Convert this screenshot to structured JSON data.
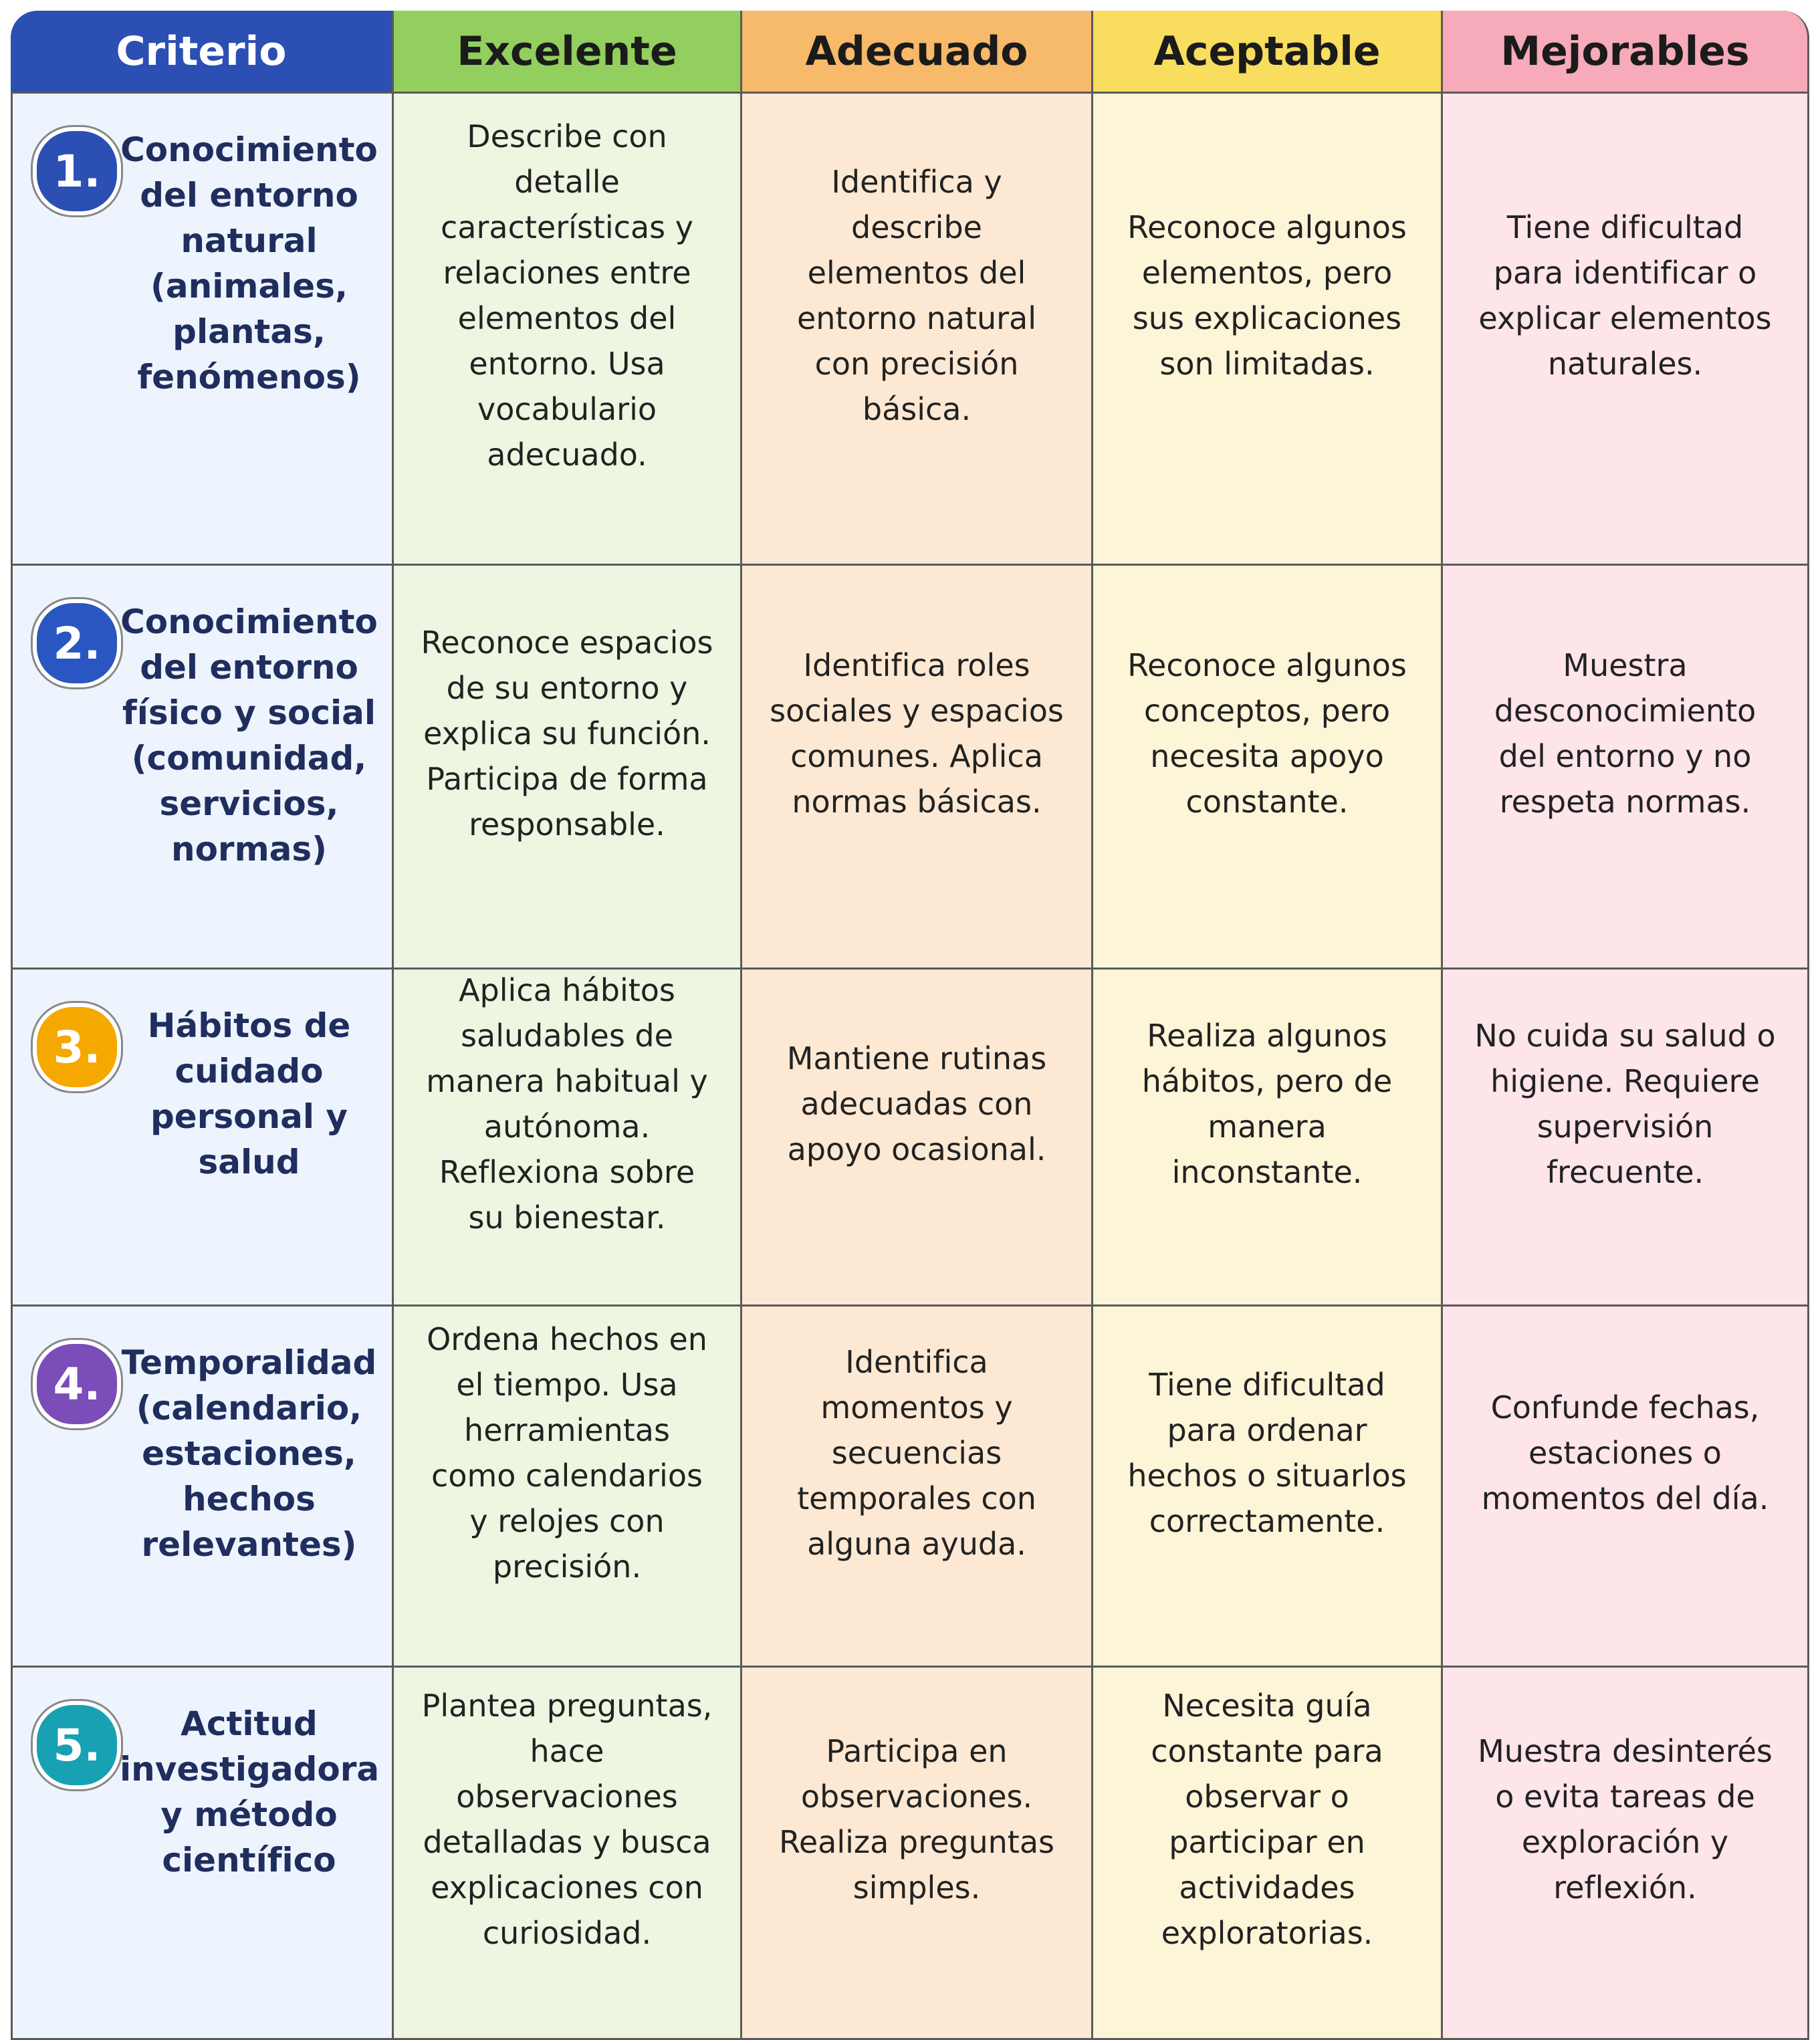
{
  "table": {
    "header": [
      "Criterio",
      "Excelente",
      "Adecuado",
      "Aceptable",
      "Mejorables"
    ],
    "rows": [
      {
        "number": "1.",
        "criterion": "Conocimiento del entorno natural (animales, plantas, fenómenos)",
        "levels": [
          "Describe con detalle características y relaciones entre elementos del entorno. Usa vocabulario adecuado.",
          "Identifica y describe elementos del entorno natural con precisión básica.",
          "Reconoce algunos elementos, pero sus explicaciones son limitadas.",
          "Tiene dificultad para identificar o explicar elementos naturales."
        ]
      },
      {
        "number": "2.",
        "criterion": "Conocimiento del entorno físico y social (comunidad, servicios, normas)",
        "levels": [
          "Reconoce espacios de su entorno y explica su función. Participa de forma responsable.",
          "Identifica roles sociales y espacios comunes. Aplica normas básicas.",
          "Reconoce algunos conceptos, pero necesita apoyo constante.",
          "Muestra desconocimiento del entorno y no respeta normas."
        ]
      },
      {
        "number": "3.",
        "criterion": "Hábitos de cuidado personal y salud",
        "levels": [
          "Aplica hábitos saludables de manera habitual y autónoma. Reflexiona sobre su bienestar.",
          "Mantiene rutinas adecuadas con apoyo ocasional.",
          "Realiza algunos hábitos, pero de manera inconstante.",
          "No cuida su salud o higiene. Requiere supervisión frecuente."
        ]
      },
      {
        "number": "4.",
        "criterion": "Temporalidad (calendario, estaciones, hechos relevantes)",
        "levels": [
          "Ordena hechos en el tiempo. Usa herramientas como calendarios y relojes con precisión.",
          "Identifica momentos y secuencias temporales con alguna ayuda.",
          "Tiene dificultad para ordenar hechos o situarlos correctamente.",
          "Confunde fechas, estaciones o momentos del día."
        ]
      },
      {
        "number": "5.",
        "criterion": "Actitud investigadora y método científico",
        "levels": [
          "Plantea preguntas, hace observaciones detalladas y busca explicaciones con curiosidad.",
          "Participa en observaciones. Realiza preguntas simples.",
          "Necesita guía constante para observar o participar en actividades exploratorias.",
          "Muestra desinterés o evita tareas de exploración y reflexión."
        ]
      }
    ]
  }
}
